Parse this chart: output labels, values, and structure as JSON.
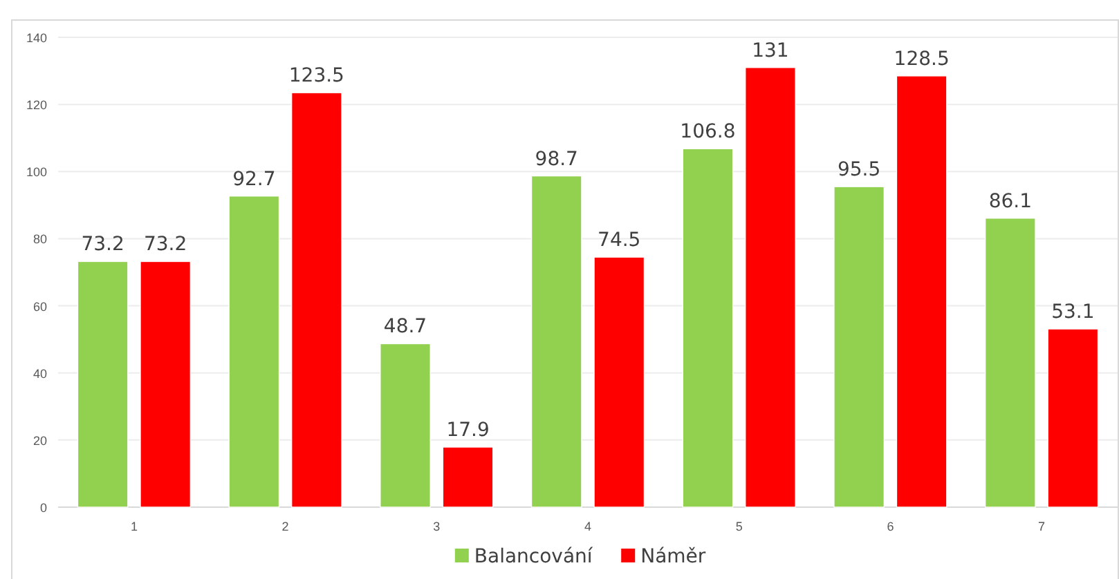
{
  "chart_data": {
    "type": "bar",
    "categories": [
      "1",
      "2",
      "3",
      "4",
      "5",
      "6",
      "7"
    ],
    "series": [
      {
        "name": "Balancování",
        "color": "#92d050",
        "values": [
          73.2,
          92.7,
          48.7,
          98.7,
          106.8,
          95.5,
          86.1
        ]
      },
      {
        "name": "Náměr",
        "color": "#ff0000",
        "values": [
          73.2,
          123.5,
          17.9,
          74.5,
          131,
          128.5,
          53.1
        ]
      }
    ],
    "ylim": [
      0,
      140
    ],
    "yticks": [
      0,
      20,
      40,
      60,
      80,
      100,
      120,
      140
    ],
    "grid": "y",
    "legend": "bottom",
    "data_labels": true
  }
}
